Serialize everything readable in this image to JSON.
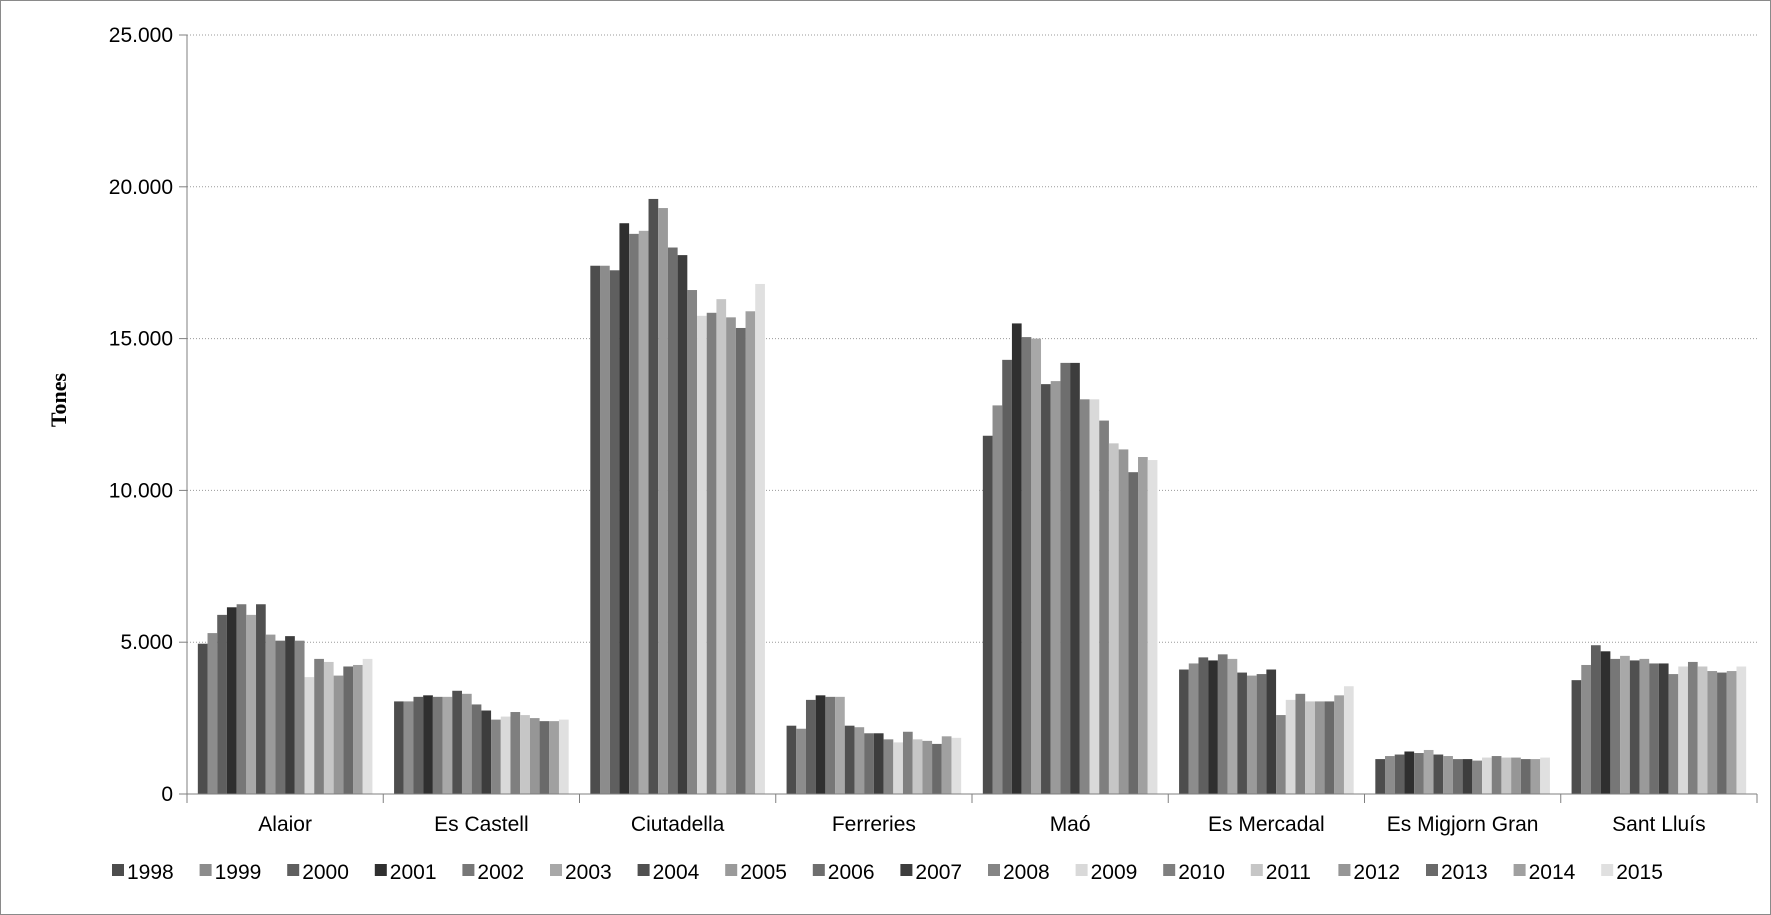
{
  "chart_data": {
    "type": "bar",
    "title": "",
    "xlabel": "",
    "ylabel": "Tones",
    "ylim": [
      0,
      25000
    ],
    "yticks": [
      0,
      5000,
      10000,
      15000,
      20000,
      25000
    ],
    "ytick_labels": [
      "0",
      "5.000",
      "10.000",
      "15.000",
      "20.000",
      "25.000"
    ],
    "grid": "horizontal dotted",
    "legend_position": "bottom",
    "categories": [
      "Alaior",
      "Es Castell",
      "Ciutadella",
      "Ferreries",
      "Maó",
      "Es Mercadal",
      "Es Migjorn Gran",
      "Sant Lluís"
    ],
    "series": [
      {
        "name": "1998",
        "color": "#4d4d4d",
        "values": [
          4950,
          3050,
          17400,
          2250,
          11800,
          4100,
          1150,
          3750
        ]
      },
      {
        "name": "1999",
        "color": "#8c8c8c",
        "values": [
          5300,
          3050,
          17400,
          2150,
          12800,
          4300,
          1250,
          4250
        ]
      },
      {
        "name": "2000",
        "color": "#5f5f5f",
        "values": [
          5900,
          3200,
          17250,
          3100,
          14300,
          4500,
          1300,
          4900
        ]
      },
      {
        "name": "2001",
        "color": "#2f2f2f",
        "values": [
          6150,
          3250,
          18800,
          3250,
          15500,
          4400,
          1400,
          4700
        ]
      },
      {
        "name": "2002",
        "color": "#777777",
        "values": [
          6250,
          3200,
          18450,
          3200,
          15050,
          4600,
          1350,
          4450
        ]
      },
      {
        "name": "2003",
        "color": "#a8a8a8",
        "values": [
          5900,
          3200,
          18550,
          3200,
          15000,
          4450,
          1450,
          4550
        ]
      },
      {
        "name": "2004",
        "color": "#505050",
        "values": [
          6250,
          3400,
          19600,
          2250,
          13500,
          4000,
          1300,
          4400
        ]
      },
      {
        "name": "2005",
        "color": "#9a9a9a",
        "values": [
          5250,
          3300,
          19300,
          2200,
          13600,
          3900,
          1250,
          4450
        ]
      },
      {
        "name": "2006",
        "color": "#6e6e6e",
        "values": [
          5050,
          2950,
          18000,
          2000,
          14200,
          3950,
          1150,
          4300
        ]
      },
      {
        "name": "2007",
        "color": "#3d3d3d",
        "values": [
          5200,
          2750,
          17750,
          2000,
          14200,
          4100,
          1150,
          4300
        ]
      },
      {
        "name": "2008",
        "color": "#858585",
        "values": [
          5050,
          2450,
          16600,
          1800,
          13000,
          2600,
          1100,
          3950
        ]
      },
      {
        "name": "2009",
        "color": "#d9d9d9",
        "values": [
          3850,
          2550,
          15750,
          1700,
          13000,
          3100,
          1200,
          4200
        ]
      },
      {
        "name": "2010",
        "color": "#7f7f7f",
        "values": [
          4450,
          2700,
          15850,
          2050,
          12300,
          3300,
          1250,
          4350
        ]
      },
      {
        "name": "2011",
        "color": "#c6c6c6",
        "values": [
          4350,
          2600,
          16300,
          1800,
          11550,
          3050,
          1200,
          4200
        ]
      },
      {
        "name": "2012",
        "color": "#969696",
        "values": [
          3900,
          2500,
          15700,
          1750,
          11350,
          3050,
          1200,
          4050
        ]
      },
      {
        "name": "2013",
        "color": "#6a6a6a",
        "values": [
          4200,
          2400,
          15350,
          1650,
          10600,
          3050,
          1150,
          4000
        ]
      },
      {
        "name": "2014",
        "color": "#a0a0a0",
        "values": [
          4250,
          2400,
          15900,
          1900,
          11100,
          3250,
          1150,
          4050
        ]
      },
      {
        "name": "2015",
        "color": "#e0e0e0",
        "values": [
          4450,
          2450,
          16800,
          1850,
          11000,
          3550,
          1200,
          4200
        ]
      }
    ]
  }
}
